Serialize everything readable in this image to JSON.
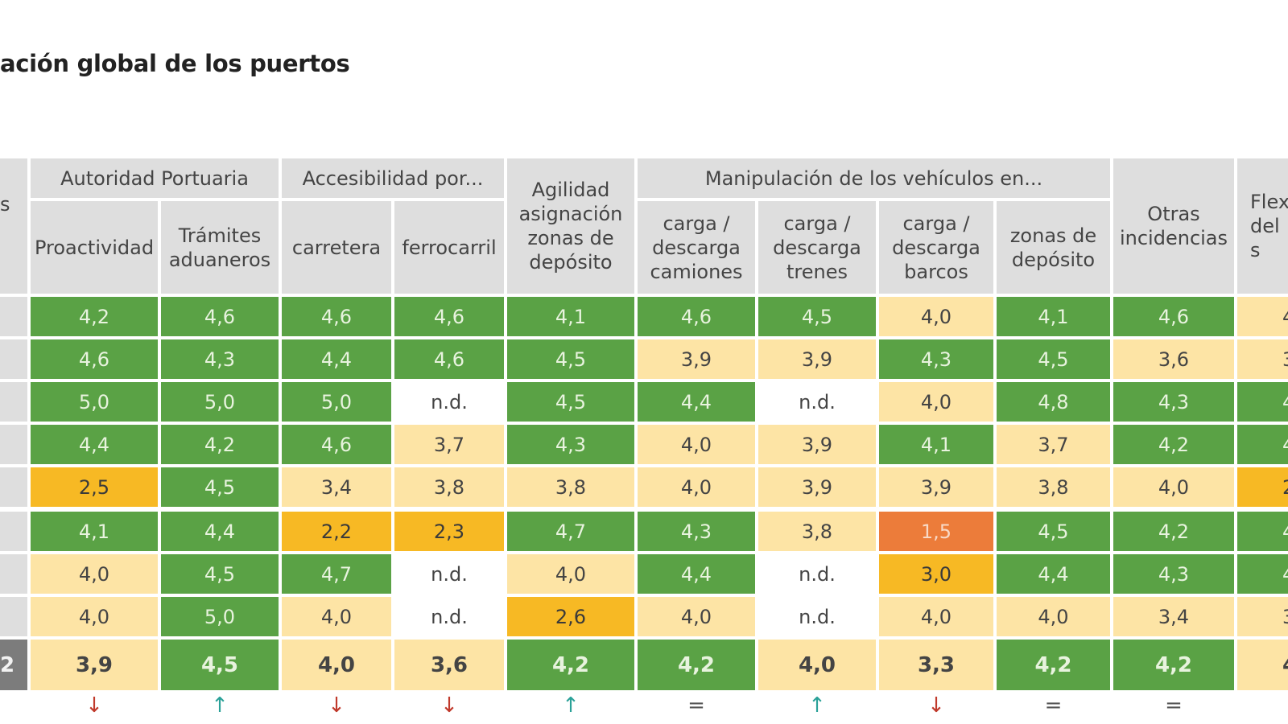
{
  "title": "ación global de los puertos",
  "header": {
    "left_stub": "s",
    "group_autoridad": "Autoridad Portuaria",
    "group_accesibilidad": "Accesibilidad por...",
    "agilidad": "Agilidad asignación zonas de depósito",
    "group_manipulacion": "Manipulación de los vehículos en...",
    "otras": "Otras incidencias",
    "flex": "Flex del s",
    "columns": [
      "Proactividad",
      "Trámites aduaneros",
      "carretera",
      "ferrocarril",
      "",
      "carga / descarga camiones",
      "carga / descarga trenes",
      "carga / descarga barcos",
      "zonas de depósito",
      ""
    ]
  },
  "colors": {
    "green": "#5aa245",
    "light_yellow": "#fde4a5",
    "orange": "#f7b924",
    "red_orange": "#ec7c3a",
    "header_gray": "#dedede",
    "total_stub": "#7c7c7c"
  },
  "rows": [
    {
      "values": [
        "4,2",
        "4,6",
        "4,6",
        "4,6",
        "4,1",
        "4,6",
        "4,5",
        "4,0",
        "4,1",
        "4,6",
        "4"
      ],
      "classes": [
        "g",
        "g",
        "g",
        "g",
        "g",
        "g",
        "g",
        "y",
        "g",
        "g",
        "y"
      ]
    },
    {
      "values": [
        "4,6",
        "4,3",
        "4,4",
        "4,6",
        "4,5",
        "3,9",
        "3,9",
        "4,3",
        "4,5",
        "3,6",
        "3"
      ],
      "classes": [
        "g",
        "g",
        "g",
        "g",
        "g",
        "y",
        "y",
        "g",
        "g",
        "y",
        "y"
      ]
    },
    {
      "values": [
        "5,0",
        "5,0",
        "5,0",
        "n.d.",
        "4,5",
        "4,4",
        "n.d.",
        "4,0",
        "4,8",
        "4,3",
        "4"
      ],
      "classes": [
        "g",
        "g",
        "g",
        "w",
        "g",
        "g",
        "w",
        "y",
        "g",
        "g",
        "g"
      ]
    },
    {
      "values": [
        "4,4",
        "4,2",
        "4,6",
        "3,7",
        "4,3",
        "4,0",
        "3,9",
        "4,1",
        "3,7",
        "4,2",
        "4"
      ],
      "classes": [
        "g",
        "g",
        "g",
        "y",
        "g",
        "y",
        "y",
        "g",
        "y",
        "g",
        "g"
      ]
    },
    {
      "values": [
        "2,5",
        "4,5",
        "3,4",
        "3,8",
        "3,8",
        "4,0",
        "3,9",
        "3,9",
        "3,8",
        "4,0",
        "2"
      ],
      "classes": [
        "o",
        "g",
        "y",
        "y",
        "y",
        "y",
        "y",
        "y",
        "y",
        "y",
        "o"
      ]
    },
    {
      "values": [
        "4,1",
        "4,4",
        "2,2",
        "2,3",
        "4,7",
        "4,3",
        "3,8",
        "1,5",
        "4,5",
        "4,2",
        "4"
      ],
      "classes": [
        "g",
        "g",
        "o",
        "o",
        "g",
        "g",
        "y",
        "r",
        "g",
        "g",
        "g"
      ]
    },
    {
      "values": [
        "4,0",
        "4,5",
        "4,7",
        "n.d.",
        "4,0",
        "4,4",
        "n.d.",
        "3,0",
        "4,4",
        "4,3",
        "4"
      ],
      "classes": [
        "y",
        "g",
        "g",
        "w",
        "y",
        "g",
        "w",
        "o",
        "g",
        "g",
        "g"
      ]
    },
    {
      "values": [
        "4,0",
        "5,0",
        "4,0",
        "n.d.",
        "2,6",
        "4,0",
        "n.d.",
        "4,0",
        "4,0",
        "3,4",
        "3"
      ],
      "classes": [
        "y",
        "g",
        "y",
        "w",
        "o",
        "y",
        "w",
        "y",
        "y",
        "y",
        "y"
      ]
    }
  ],
  "total": {
    "stub": "2",
    "values": [
      "3,9",
      "4,5",
      "4,0",
      "3,6",
      "4,2",
      "4,2",
      "4,0",
      "3,3",
      "4,2",
      "4,2",
      "4"
    ],
    "classes": [
      "y",
      "g",
      "y",
      "y",
      "g",
      "g",
      "y",
      "y",
      "g",
      "g",
      "y"
    ]
  },
  "trends": [
    {
      "symbol": "↓",
      "color": "#c0392b"
    },
    {
      "symbol": "↑",
      "color": "#2aa198"
    },
    {
      "symbol": "↓",
      "color": "#c0392b"
    },
    {
      "symbol": "↓",
      "color": "#c0392b"
    },
    {
      "symbol": "↑",
      "color": "#2aa198"
    },
    {
      "symbol": "=",
      "color": "#555555"
    },
    {
      "symbol": "↑",
      "color": "#2aa198"
    },
    {
      "symbol": "↓",
      "color": "#c0392b"
    },
    {
      "symbol": "=",
      "color": "#555555"
    },
    {
      "symbol": "=",
      "color": "#555555"
    }
  ]
}
